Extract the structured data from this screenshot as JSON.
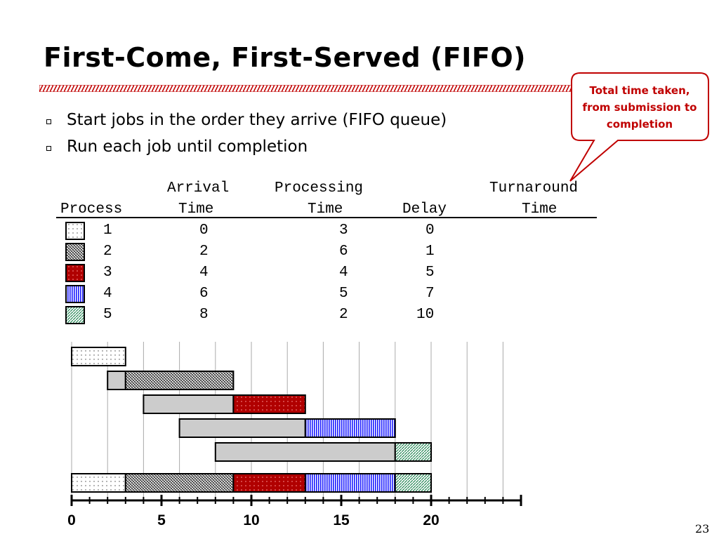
{
  "slide": {
    "title": "First-Come, First-Served (FIFO)",
    "page_number": "23"
  },
  "bullets": [
    "Start jobs in the order they arrive (FIFO queue)",
    "Run each job until completion"
  ],
  "callout": {
    "lines": [
      "Total time taken,",
      "from submission to",
      "completion"
    ],
    "color": "#c00000"
  },
  "table": {
    "headers": {
      "process": "Process",
      "arrival_top": "Arrival",
      "arrival_bottom": "Time",
      "processing_top": "Processing",
      "processing_bottom": "Time",
      "delay": "Delay",
      "turnaround_top": "Turnaround",
      "turnaround_bottom": "Time"
    },
    "rows": [
      {
        "process": "1",
        "arrival": "0",
        "processing": "3",
        "delay": "0",
        "pattern": "dots"
      },
      {
        "process": "2",
        "arrival": "2",
        "processing": "6",
        "delay": "1",
        "pattern": "crosshatch"
      },
      {
        "process": "3",
        "arrival": "4",
        "processing": "4",
        "delay": "5",
        "pattern": "red-dots"
      },
      {
        "process": "4",
        "arrival": "6",
        "processing": "5",
        "delay": "7",
        "pattern": "blue-stripes"
      },
      {
        "process": "5",
        "arrival": "8",
        "processing": "2",
        "delay": "10",
        "pattern": "green-diagonal"
      }
    ]
  },
  "chart_data": {
    "type": "gantt",
    "x_ticks": [
      "0",
      "5",
      "10",
      "15",
      "20"
    ],
    "xlim": [
      0,
      25
    ],
    "grid": true,
    "jobs": [
      {
        "process": 1,
        "arrival": 0,
        "start": 0,
        "end": 3,
        "pattern": "dots"
      },
      {
        "process": 2,
        "arrival": 2,
        "start": 3,
        "end": 9,
        "pattern": "crosshatch"
      },
      {
        "process": 3,
        "arrival": 4,
        "start": 9,
        "end": 13,
        "pattern": "red-dots"
      },
      {
        "process": 4,
        "arrival": 6,
        "start": 13,
        "end": 18,
        "pattern": "blue-stripes"
      },
      {
        "process": 5,
        "arrival": 8,
        "start": 18,
        "end": 20,
        "pattern": "green-diagonal"
      }
    ],
    "wait_color": "#cccccc"
  }
}
